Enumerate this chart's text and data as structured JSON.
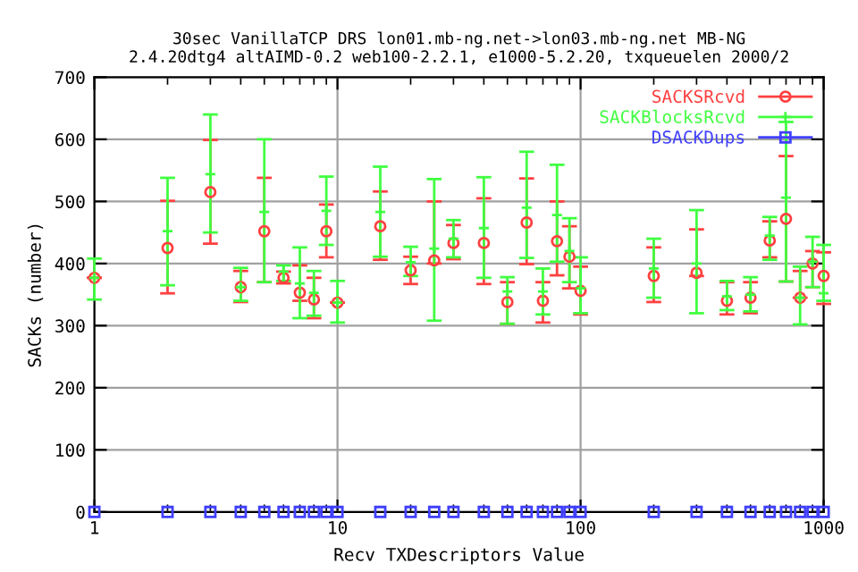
{
  "chart_data": {
    "type": "scatter",
    "title": "30sec VanillaTCP DRS lon01.mb-ng.net->lon03.mb-ng.net MB-NG\n2.4.20dtg4 altAIMD-0.2 web100-2.2.1, e1000-5.2.20, txqueuelen 2000/2",
    "xlabel": "Recv TXDescriptors Value",
    "ylabel": "SACKs (number)",
    "x": [
      1,
      2,
      3,
      4,
      5,
      6,
      7,
      8,
      9,
      10,
      15,
      20,
      25,
      30,
      40,
      50,
      60,
      70,
      80,
      90,
      100,
      200,
      300,
      400,
      500,
      600,
      700,
      800,
      900,
      1000
    ],
    "log": "x",
    "xlim": [
      1,
      1000
    ],
    "ylim": [
      0,
      700
    ],
    "xticks": [
      1,
      10,
      100,
      1000
    ],
    "yticks": [
      0,
      100,
      200,
      300,
      400,
      500,
      600,
      700
    ],
    "grid": true,
    "legend": "top right",
    "series": [
      {
        "name": "SACKSRcvd",
        "color": "#ff4040",
        "marker": "circle",
        "values": [
          377,
          425,
          515,
          362,
          452,
          377,
          353,
          342,
          452,
          337,
          460,
          389,
          405,
          433,
          433,
          338,
          466,
          340,
          436,
          411,
          356,
          380,
          385,
          340,
          345,
          437,
          472,
          345,
          400,
          380
        ],
        "errors": [
          null,
          [
            352,
            501
          ],
          [
            432,
            599
          ],
          [
            338,
            388
          ],
          [
            370,
            538
          ],
          [
            368,
            387
          ],
          [
            340,
            397
          ],
          [
            312,
            377
          ],
          [
            410,
            495
          ],
          null,
          [
            406,
            516
          ],
          [
            367,
            411
          ],
          [
            400,
            500
          ],
          [
            407,
            462
          ],
          [
            367,
            505
          ],
          [
            303,
            370
          ],
          [
            399,
            537
          ],
          [
            305,
            370
          ],
          [
            381,
            500
          ],
          [
            360,
            460
          ],
          [
            318,
            395
          ],
          [
            338,
            426
          ],
          [
            380,
            455
          ],
          [
            318,
            370
          ],
          [
            320,
            370
          ],
          [
            410,
            468
          ],
          [
            371,
            573
          ],
          [
            345,
            388
          ],
          [
            362,
            420
          ],
          [
            335,
            418
          ]
        ]
      },
      {
        "name": "SACKBlocksRcvd",
        "color": "#40ff40",
        "marker": "cross",
        "values": [
          377,
          452,
          544,
          362,
          483,
          387,
          368,
          353,
          485,
          337,
          483,
          402,
          424,
          440,
          457,
          355,
          490,
          355,
          478,
          420,
          360,
          392,
          400,
          347,
          350,
          445,
          506,
          345,
          403,
          352
        ],
        "errors": [
          [
            342,
            408
          ],
          [
            365,
            538
          ],
          [
            450,
            640
          ],
          [
            340,
            393
          ],
          [
            370,
            600
          ],
          [
            372,
            397
          ],
          [
            312,
            426
          ],
          [
            316,
            388
          ],
          [
            430,
            540
          ],
          [
            305,
            372
          ],
          [
            411,
            556
          ],
          [
            380,
            427
          ],
          [
            308,
            536
          ],
          [
            410,
            470
          ],
          [
            377,
            539
          ],
          [
            303,
            378
          ],
          [
            409,
            580
          ],
          [
            318,
            392
          ],
          [
            403,
            559
          ],
          [
            370,
            473
          ],
          [
            320,
            410
          ],
          [
            345,
            440
          ],
          [
            320,
            486
          ],
          [
            325,
            372
          ],
          [
            323,
            378
          ],
          [
            406,
            475
          ],
          [
            371,
            628
          ],
          [
            302,
            395
          ],
          [
            362,
            443
          ],
          [
            340,
            430
          ]
        ]
      },
      {
        "name": "DSACKDups",
        "color": "#4040ff",
        "marker": "square",
        "values": [
          0,
          0,
          0,
          0,
          0,
          0,
          0,
          0,
          0,
          0,
          0,
          0,
          0,
          0,
          0,
          0,
          0,
          0,
          0,
          0,
          0,
          0,
          0,
          0,
          0,
          0,
          0,
          0,
          0,
          0
        ]
      }
    ]
  }
}
